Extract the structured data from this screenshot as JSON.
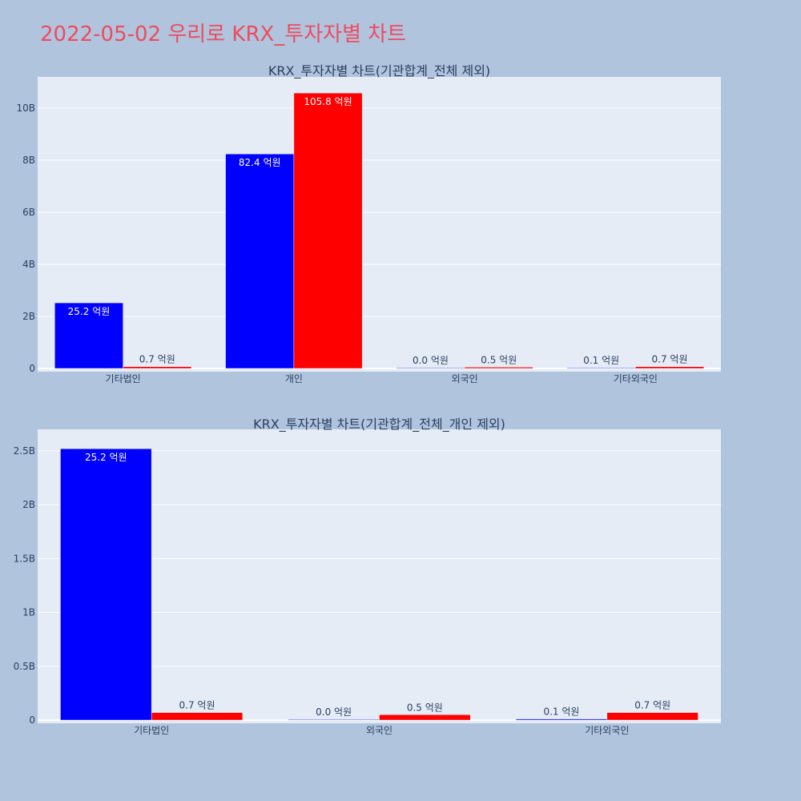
{
  "page": {
    "title": "2022-05-02 우리로 KRX_투자자별 차트"
  },
  "colors": {
    "background": "#b0c4de",
    "plot_background": "#e5ecf6",
    "title": "#ef4b5d",
    "series_1": "#0000ff",
    "series_2": "#ff0000"
  },
  "chart_data": [
    {
      "type": "bar",
      "title": "KRX_투자자별 차트(기관합계_전체 제외)",
      "categories": [
        "기타법인",
        "개인",
        "외국인",
        "기타외국인"
      ],
      "series": [
        {
          "values": [
            2520000000,
            8240000000,
            0,
            10000000
          ],
          "labels": [
            "25.2 억원",
            "82.4 억원",
            "0.0 억원",
            "0.1 억원"
          ]
        },
        {
          "values": [
            70000000,
            10580000000,
            50000000,
            70000000
          ],
          "labels": [
            "0.7 억원",
            "105.8 억원",
            "0.5 억원",
            "0.7 억원"
          ]
        }
      ],
      "ylim": [
        0,
        11200000000
      ],
      "yticks": [
        0,
        2000000000,
        4000000000,
        6000000000,
        8000000000,
        10000000000
      ],
      "ytick_labels": [
        "0",
        "2B",
        "4B",
        "6B",
        "8B",
        "10B"
      ],
      "grid": true,
      "legend": "none"
    },
    {
      "type": "bar",
      "title": "KRX_투자자별 차트(기관합계_전체_개인 제외)",
      "categories": [
        "기타법인",
        "외국인",
        "기타외국인"
      ],
      "series": [
        {
          "values": [
            2520000000,
            0,
            10000000
          ],
          "labels": [
            "25.2 억원",
            "0.0 억원",
            "0.1 억원"
          ]
        },
        {
          "values": [
            70000000,
            50000000,
            70000000
          ],
          "labels": [
            "0.7 억원",
            "0.5 억원",
            "0.7 억원"
          ]
        }
      ],
      "ylim": [
        0,
        2700000000
      ],
      "yticks": [
        0,
        500000000,
        1000000000,
        1500000000,
        2000000000,
        2500000000
      ],
      "ytick_labels": [
        "0",
        "0.5B",
        "1B",
        "1.5B",
        "2B",
        "2.5B"
      ],
      "grid": true,
      "legend": "none"
    }
  ]
}
